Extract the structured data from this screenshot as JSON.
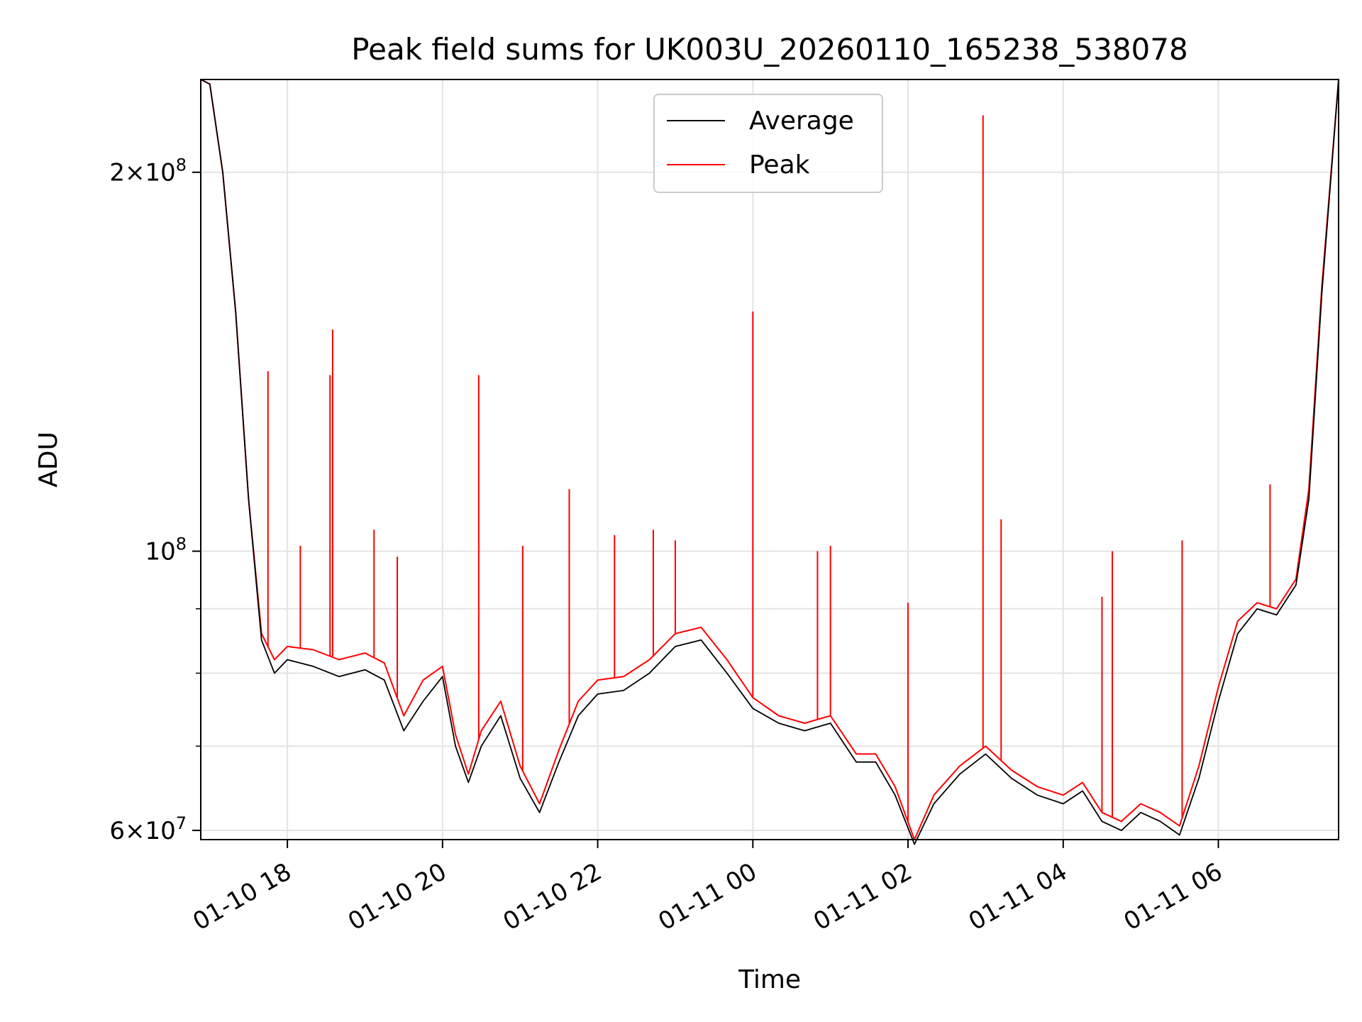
{
  "chart_data": {
    "type": "line",
    "title": "Peak field sums for UK003U_20260110_165238_538078",
    "xlabel": "Time",
    "ylabel": "ADU",
    "yscale": "log",
    "ylim": [
      59000000,
      237000000
    ],
    "xlim": [
      "2026-01-10 16:53",
      "2026-01-11 07:33"
    ],
    "grid": true,
    "legend_position": "upper center",
    "x_tick_labels": [
      "01-10 18",
      "01-10 20",
      "01-10 22",
      "01-11 00",
      "01-11 02",
      "01-11 04",
      "01-11 06"
    ],
    "x_ticks": [
      "2026-01-10 18:00",
      "2026-01-10 20:00",
      "2026-01-10 22:00",
      "2026-01-11 00:00",
      "2026-01-11 02:00",
      "2026-01-11 04:00",
      "2026-01-11 06:00"
    ],
    "y_ticks": [
      {
        "value": 60000000,
        "mantissa": "6",
        "exponent": "7"
      },
      {
        "value": 100000000,
        "mantissa": "",
        "exponent": "8"
      },
      {
        "value": 200000000,
        "mantissa": "2",
        "exponent": "8"
      }
    ],
    "y_minor_ticks": [
      70000000,
      80000000,
      90000000
    ],
    "x": [
      "2026-01-10 16:53",
      "2026-01-10 17:00",
      "2026-01-10 17:10",
      "2026-01-10 17:20",
      "2026-01-10 17:30",
      "2026-01-10 17:40",
      "2026-01-10 17:50",
      "2026-01-10 18:00",
      "2026-01-10 18:20",
      "2026-01-10 18:40",
      "2026-01-10 19:00",
      "2026-01-10 19:15",
      "2026-01-10 19:30",
      "2026-01-10 19:45",
      "2026-01-10 20:00",
      "2026-01-10 20:10",
      "2026-01-10 20:20",
      "2026-01-10 20:30",
      "2026-01-10 20:45",
      "2026-01-10 21:00",
      "2026-01-10 21:15",
      "2026-01-10 21:30",
      "2026-01-10 21:45",
      "2026-01-10 22:00",
      "2026-01-10 22:20",
      "2026-01-10 22:40",
      "2026-01-10 23:00",
      "2026-01-10 23:20",
      "2026-01-10 23:40",
      "2026-01-11 00:00",
      "2026-01-11 00:20",
      "2026-01-11 00:40",
      "2026-01-11 01:00",
      "2026-01-11 01:20",
      "2026-01-11 01:35",
      "2026-01-11 01:50",
      "2026-01-11 02:05",
      "2026-01-11 02:20",
      "2026-01-11 02:40",
      "2026-01-11 03:00",
      "2026-01-11 03:20",
      "2026-01-11 03:40",
      "2026-01-11 04:00",
      "2026-01-11 04:15",
      "2026-01-11 04:30",
      "2026-01-11 04:45",
      "2026-01-11 05:00",
      "2026-01-11 05:15",
      "2026-01-11 05:30",
      "2026-01-11 05:45",
      "2026-01-11 06:00",
      "2026-01-11 06:15",
      "2026-01-11 06:30",
      "2026-01-11 06:45",
      "2026-01-11 07:00",
      "2026-01-11 07:10",
      "2026-01-11 07:20",
      "2026-01-11 07:33"
    ],
    "series": [
      {
        "name": "Average",
        "color": "#000000",
        "values": [
          237000000,
          235000000,
          200000000,
          155000000,
          110000000,
          85000000,
          80000000,
          82000000,
          81000000,
          79500000,
          80500000,
          79000000,
          72000000,
          76000000,
          79500000,
          70000000,
          65500000,
          70000000,
          74000000,
          66000000,
          62000000,
          68000000,
          74000000,
          77000000,
          77500000,
          80000000,
          84000000,
          85000000,
          80000000,
          75000000,
          73000000,
          72000000,
          73000000,
          68000000,
          68000000,
          64000000,
          58500000,
          63000000,
          66500000,
          69000000,
          66000000,
          64000000,
          63000000,
          64500000,
          61000000,
          60000000,
          62000000,
          61000000,
          59500000,
          66000000,
          76000000,
          86000000,
          90000000,
          89000000,
          94000000,
          110000000,
          160000000,
          237000000
        ]
      },
      {
        "name": "Peak",
        "color": "#ff0000",
        "values": [
          237000000,
          235000000,
          200000000,
          155000000,
          110000000,
          86000000,
          82000000,
          84000000,
          83500000,
          82000000,
          83000000,
          81500000,
          74000000,
          79000000,
          81000000,
          71500000,
          66500000,
          72000000,
          76000000,
          67500000,
          63000000,
          69500000,
          76000000,
          79000000,
          79500000,
          82000000,
          86000000,
          87000000,
          82000000,
          76500000,
          74000000,
          73000000,
          74000000,
          69000000,
          69000000,
          65000000,
          59000000,
          64000000,
          67500000,
          70000000,
          67000000,
          65000000,
          64000000,
          65500000,
          62000000,
          61000000,
          63000000,
          62000000,
          60500000,
          67500000,
          78000000,
          88000000,
          91000000,
          90000000,
          95000000,
          112000000,
          162000000,
          237000000
        ]
      }
    ],
    "peak_spikes": [
      {
        "x": "2026-01-10 17:45",
        "value": 139000000
      },
      {
        "x": "2026-01-10 18:33",
        "value": 138000000
      },
      {
        "x": "2026-01-10 18:35",
        "value": 150000000
      },
      {
        "x": "2026-01-10 18:10",
        "value": 101000000
      },
      {
        "x": "2026-01-10 19:07",
        "value": 104000000
      },
      {
        "x": "2026-01-10 19:25",
        "value": 99000000
      },
      {
        "x": "2026-01-10 20:28",
        "value": 138000000
      },
      {
        "x": "2026-01-10 21:02",
        "value": 101000000
      },
      {
        "x": "2026-01-10 21:38",
        "value": 112000000
      },
      {
        "x": "2026-01-10 22:13",
        "value": 103000000
      },
      {
        "x": "2026-01-10 22:43",
        "value": 104000000
      },
      {
        "x": "2026-01-10 23:00",
        "value": 102000000
      },
      {
        "x": "2026-01-11 00:00",
        "value": 155000000
      },
      {
        "x": "2026-01-11 00:50",
        "value": 100000000
      },
      {
        "x": "2026-01-11 01:00",
        "value": 101000000
      },
      {
        "x": "2026-01-11 02:00",
        "value": 91000000
      },
      {
        "x": "2026-01-11 02:58",
        "value": 222000000
      },
      {
        "x": "2026-01-11 03:12",
        "value": 106000000
      },
      {
        "x": "2026-01-11 04:30",
        "value": 92000000
      },
      {
        "x": "2026-01-11 04:38",
        "value": 100000000
      },
      {
        "x": "2026-01-11 05:32",
        "value": 102000000
      },
      {
        "x": "2026-01-11 06:40",
        "value": 113000000
      }
    ]
  }
}
